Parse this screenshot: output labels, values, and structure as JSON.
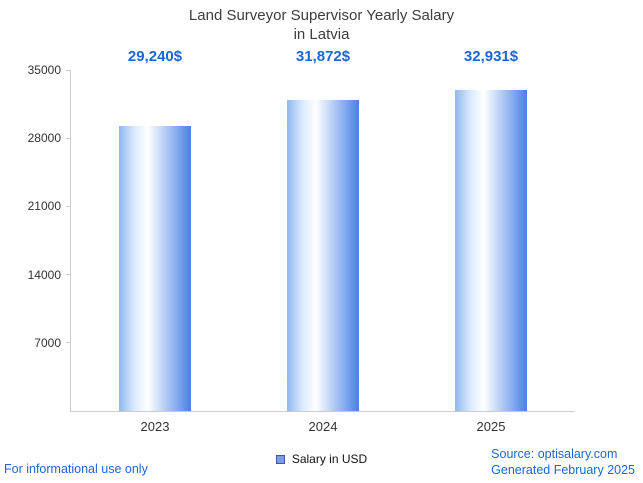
{
  "chart_data": {
    "type": "bar",
    "title_line1": "Land Surveyor Supervisor Yearly Salary",
    "title_line2": "in Latvia",
    "categories": [
      "2023",
      "2024",
      "2025"
    ],
    "values": [
      29240,
      31872,
      32931
    ],
    "value_labels": [
      "29,240$",
      "31,872$",
      "32,931$"
    ],
    "ylim": [
      0,
      35000
    ],
    "yticks": [
      7000,
      14000,
      21000,
      28000,
      35000
    ],
    "legend": "Salary in USD",
    "legend_position": "bottom",
    "grid": false,
    "bar_color_left": "#8fb8f0",
    "bar_color_center": "#ffffff",
    "bar_color_right": "#4a7fe8",
    "value_label_color": "#1a66d9",
    "axis_color": "#cccccc"
  },
  "footer": {
    "left": "For informational use only",
    "source": "Source: optisalary.com",
    "generated": "Generated February 2025"
  }
}
